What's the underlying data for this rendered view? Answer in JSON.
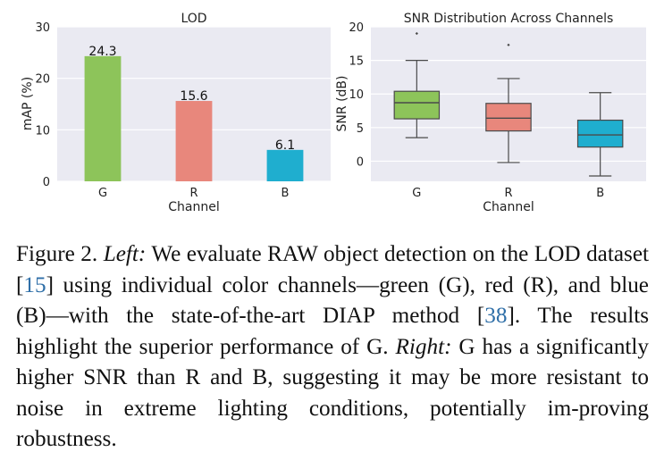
{
  "chart_data": [
    {
      "type": "bar",
      "title": "LOD",
      "xlabel": "Channel",
      "ylabel": "mAP (%)",
      "categories": [
        "G",
        "R",
        "B"
      ],
      "values": [
        24.3,
        15.6,
        6.1
      ],
      "value_labels": [
        "24.3",
        "15.6",
        "6.1"
      ],
      "colors": [
        "#8dc45a",
        "#e8877c",
        "#1faecf"
      ],
      "ylim": [
        0,
        30
      ],
      "yticks": [
        0,
        10,
        20,
        30
      ],
      "grid": true,
      "background": "#eaeaf2"
    },
    {
      "type": "box",
      "title": "SNR Distribution Across Channels",
      "xlabel": "Channel",
      "ylabel": "SNR (dB)",
      "categories": [
        "G",
        "R",
        "B"
      ],
      "boxes": [
        {
          "name": "G",
          "whisker_low": 3.5,
          "q1": 6.3,
          "median": 8.7,
          "q3": 10.4,
          "whisker_high": 15.0,
          "outliers": [
            19.0
          ]
        },
        {
          "name": "R",
          "whisker_low": -0.2,
          "q1": 4.5,
          "median": 6.4,
          "q3": 8.6,
          "whisker_high": 12.3,
          "outliers": [
            17.3
          ]
        },
        {
          "name": "B",
          "whisker_low": -2.2,
          "q1": 2.1,
          "median": 3.9,
          "q3": 6.1,
          "whisker_high": 10.2,
          "outliers": []
        }
      ],
      "colors": [
        "#8dc45a",
        "#e8877c",
        "#1faecf"
      ],
      "ylim": [
        -3,
        20
      ],
      "yticks": [
        0,
        5,
        10,
        15,
        20
      ],
      "grid": true,
      "background": "#eaeaf2"
    }
  ],
  "caption": {
    "figure_label": "Figure 2.",
    "left_label": "Left:",
    "part1": "We evaluate RAW object detection on the LOD dataset [",
    "cite1": "15",
    "part2": "] using individual color channels—green (G), red (R), and blue (B)—with the state-of-the-art DIAP method [",
    "cite2": "38",
    "part3": "]. The results highlight the superior performance of G.",
    "right_label": "Right:",
    "part4": "G has a significantly higher SNR than R and B, suggesting it may be more resistant to noise in extreme lighting conditions, potentially im-proving robustness."
  }
}
